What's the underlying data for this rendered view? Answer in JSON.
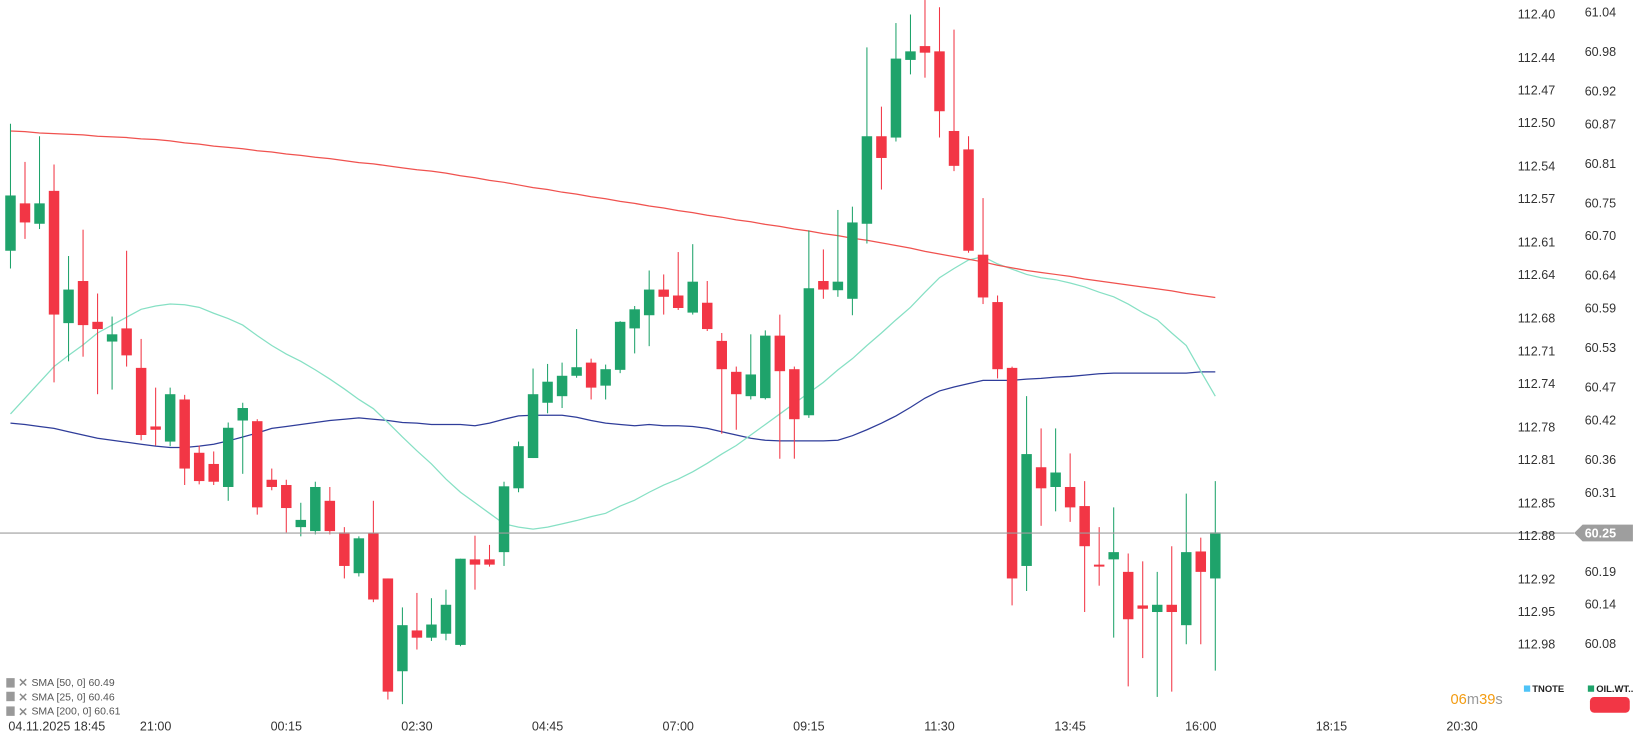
{
  "chart_data": {
    "type": "candlestick",
    "categories": [
      null,
      "04.11.2025 18:45",
      null,
      null,
      null,
      null,
      null,
      null,
      null,
      null,
      "21:00",
      null,
      null,
      null,
      null,
      null,
      null,
      null,
      null,
      "00:15",
      null,
      null,
      null,
      null,
      null,
      null,
      null,
      null,
      "02:30",
      null,
      null,
      null,
      null,
      null,
      null,
      null,
      null,
      "04:45",
      null,
      null,
      null,
      null,
      null,
      null,
      null,
      null,
      "07:00",
      null,
      null,
      null,
      null,
      null,
      null,
      null,
      null,
      "09:15",
      null,
      null,
      null,
      null,
      null,
      null,
      null,
      null,
      "11:30",
      null,
      null,
      null,
      null,
      null,
      null,
      null,
      null,
      "13:45",
      null,
      null,
      null,
      null,
      null,
      null,
      null,
      null,
      "16:00",
      null,
      null,
      null,
      null,
      null,
      null,
      null,
      null,
      "18:15",
      null,
      null,
      null,
      null,
      null,
      null,
      null,
      null,
      "20:30"
    ],
    "open": [
      60.679,
      60.751,
      60.72,
      60.77,
      60.569,
      60.633,
      60.571,
      60.541,
      60.561,
      60.501,
      60.412,
      60.389,
      60.453,
      60.372,
      60.355,
      60.32,
      60.421,
      60.42,
      60.331,
      60.323,
      60.259,
      60.253,
      60.299,
      60.251,
      60.189,
      60.25,
      60.181,
      60.04,
      60.102,
      60.091,
      60.097,
      60.08,
      60.21,
      60.21,
      60.221,
      60.318,
      60.364,
      60.448,
      60.458,
      60.489,
      60.509,
      60.474,
      60.498,
      60.561,
      60.581,
      60.62,
      60.611,
      60.585,
      60.6,
      60.542,
      60.495,
      60.458,
      60.455,
      60.55,
      60.499,
      60.429,
      60.633,
      60.619,
      60.606,
      60.72,
      60.853,
      60.851,
      60.969,
      60.99,
      60.982,
      60.861,
      60.833,
      60.673,
      60.601,
      60.501,
      60.2,
      60.35,
      60.32,
      60.32,
      60.291,
      60.202,
      60.21,
      60.191,
      60.14,
      60.13,
      60.141,
      60.11,
      60.222,
      60.181,
      null,
      null,
      null,
      null,
      null,
      null,
      null,
      null,
      null,
      null,
      null,
      null,
      null,
      null,
      null,
      null,
      null
    ],
    "high": [
      60.872,
      60.814,
      60.853,
      60.81,
      60.671,
      60.711,
      60.614,
      60.579,
      60.679,
      60.545,
      60.471,
      60.471,
      60.46,
      60.383,
      60.374,
      60.418,
      60.448,
      60.423,
      60.348,
      60.331,
      60.296,
      60.328,
      60.32,
      60.259,
      60.245,
      60.299,
      60.181,
      60.137,
      60.159,
      60.151,
      60.164,
      60.211,
      60.246,
      60.232,
      60.328,
      60.389,
      60.5,
      60.507,
      60.509,
      60.56,
      60.515,
      60.506,
      60.572,
      60.595,
      60.649,
      60.643,
      60.677,
      60.689,
      60.633,
      60.554,
      60.503,
      60.552,
      60.558,
      60.582,
      60.503,
      60.71,
      60.681,
      60.741,
      60.746,
      60.988,
      60.898,
      61.025,
      61.038,
      61.06,
      61.049,
      61.015,
      60.853,
      60.759,
      60.611,
      60.503,
      60.458,
      60.409,
      60.409,
      60.371,
      60.329,
      60.259,
      60.289,
      60.219,
      60.207,
      60.191,
      60.23,
      60.31,
      60.243,
      60.329,
      null,
      null,
      null,
      null,
      null,
      null,
      null,
      null,
      null,
      null,
      null,
      null,
      null,
      null,
      null,
      null,
      null
    ],
    "low": [
      60.652,
      60.697,
      60.712,
      60.479,
      60.511,
      60.518,
      60.461,
      60.468,
      60.503,
      60.391,
      60.383,
      60.382,
      60.323,
      60.324,
      60.323,
      60.299,
      60.34,
      60.278,
      60.315,
      60.251,
      60.245,
      60.248,
      60.248,
      60.181,
      60.184,
      60.145,
      59.997,
      59.99,
      60.073,
      60.086,
      60.087,
      60.078,
      60.164,
      60.199,
      60.2,
      60.312,
      60.364,
      60.432,
      60.44,
      60.486,
      60.453,
      60.453,
      60.493,
      60.523,
      60.534,
      60.582,
      60.589,
      60.582,
      60.557,
      60.401,
      60.407,
      60.453,
      60.453,
      60.363,
      60.363,
      60.425,
      60.606,
      60.609,
      60.581,
      60.69,
      60.772,
      60.845,
      60.947,
      60.942,
      60.851,
      60.8,
      60.676,
      60.598,
      60.485,
      60.14,
      60.162,
      60.261,
      60.283,
      60.267,
      60.13,
      60.17,
      60.091,
      60.017,
      60.06,
      60.001,
      60.009,
      60.081,
      60.081,
      60.041,
      null,
      null,
      null,
      null,
      null,
      null,
      null,
      null,
      null,
      null,
      null,
      null,
      null,
      null,
      null,
      null,
      null
    ],
    "close": [
      60.763,
      60.722,
      60.751,
      60.582,
      60.62,
      60.566,
      60.56,
      60.552,
      60.52,
      60.399,
      60.407,
      60.461,
      60.348,
      60.329,
      60.328,
      60.41,
      60.44,
      60.289,
      60.32,
      60.288,
      60.27,
      60.32,
      60.253,
      60.2,
      60.242,
      60.149,
      60.009,
      60.11,
      60.091,
      60.111,
      60.141,
      60.211,
      60.202,
      60.202,
      60.321,
      60.382,
      60.461,
      60.48,
      60.489,
      60.502,
      60.471,
      60.499,
      60.571,
      60.59,
      60.62,
      60.609,
      60.592,
      60.632,
      60.56,
      60.499,
      60.461,
      60.491,
      60.55,
      60.496,
      60.423,
      60.622,
      60.62,
      60.632,
      60.722,
      60.853,
      60.82,
      60.971,
      60.982,
      60.98,
      60.891,
      60.808,
      60.679,
      60.608,
      60.499,
      60.181,
      60.37,
      60.318,
      60.342,
      60.289,
      60.23,
      60.199,
      60.221,
      60.119,
      60.135,
      60.141,
      60.13,
      60.221,
      60.191,
      60.251,
      null,
      null,
      null,
      null,
      null,
      null,
      null,
      null,
      null,
      null,
      null,
      null,
      null,
      null,
      null,
      null,
      null
    ],
    "up_color": "#1fa36b",
    "down_color": "#f23645",
    "lines": [
      {
        "name": "SMA [50, 0] 60.49",
        "color": "#2f3d9a",
        "values": [
          60.417,
          60.415,
          60.412,
          60.409,
          60.404,
          60.399,
          60.394,
          60.391,
          60.388,
          60.385,
          60.382,
          60.38,
          60.38,
          60.382,
          60.385,
          60.39,
          60.396,
          60.402,
          60.409,
          60.412,
          60.415,
          60.418,
          60.421,
          60.423,
          60.425,
          60.423,
          60.421,
          60.418,
          60.417,
          60.415,
          60.415,
          60.415,
          60.413,
          60.417,
          60.423,
          60.428,
          60.429,
          60.429,
          60.429,
          60.426,
          60.421,
          60.417,
          60.415,
          60.413,
          60.415,
          60.413,
          60.413,
          60.412,
          60.409,
          60.404,
          60.399,
          60.394,
          60.391,
          60.39,
          60.39,
          60.39,
          60.39,
          60.391,
          60.398,
          60.407,
          60.417,
          60.428,
          60.441,
          60.455,
          60.466,
          60.472,
          60.477,
          60.482,
          60.482,
          60.482,
          60.484,
          60.485,
          60.487,
          60.488,
          60.49,
          60.492,
          60.493,
          60.493,
          60.493,
          60.493,
          60.493,
          60.493,
          60.495,
          60.495,
          null,
          null,
          null,
          null,
          null,
          null,
          null,
          null,
          null,
          null,
          null,
          null,
          null,
          null,
          null,
          null,
          null
        ]
      },
      {
        "name": "SMA [25, 0] 60.46",
        "color": "#86e0c4",
        "values": [
          60.431,
          60.455,
          60.479,
          60.503,
          60.52,
          60.536,
          60.554,
          60.566,
          60.578,
          60.59,
          60.595,
          60.598,
          60.597,
          60.593,
          60.584,
          60.576,
          60.566,
          60.55,
          60.535,
          60.522,
          60.511,
          60.498,
          60.484,
          60.469,
          60.453,
          60.439,
          60.418,
          60.396,
          60.375,
          60.355,
          60.332,
          60.312,
          60.296,
          60.28,
          60.264,
          60.259,
          60.256,
          60.259,
          60.264,
          60.269,
          60.275,
          60.28,
          60.291,
          60.3,
          60.312,
          60.323,
          60.332,
          60.343,
          60.356,
          60.37,
          60.383,
          60.399,
          60.415,
          60.431,
          60.447,
          60.463,
          60.479,
          60.498,
          60.515,
          60.535,
          60.554,
          60.574,
          60.593,
          60.616,
          60.638,
          60.652,
          60.665,
          60.67,
          60.659,
          60.651,
          60.643,
          60.638,
          60.635,
          60.63,
          60.624,
          60.616,
          60.609,
          60.598,
          60.585,
          60.574,
          60.554,
          60.535,
          60.496,
          60.458,
          null,
          null,
          null,
          null,
          null,
          null,
          null,
          null,
          null,
          null,
          null,
          null,
          null,
          null,
          null,
          null,
          null
        ]
      },
      {
        "name": "SMA [200, 0] 60.61",
        "color": "#f0524f",
        "values": [
          60.861,
          60.86,
          60.858,
          60.857,
          60.856,
          60.855,
          60.853,
          60.852,
          60.851,
          60.849,
          60.848,
          60.846,
          60.843,
          60.841,
          60.838,
          60.836,
          60.834,
          60.831,
          60.829,
          60.826,
          60.824,
          60.821,
          60.819,
          60.816,
          60.813,
          60.811,
          60.808,
          60.805,
          60.802,
          60.8,
          60.797,
          60.793,
          60.79,
          60.786,
          60.783,
          60.779,
          60.775,
          60.772,
          60.768,
          60.765,
          60.761,
          60.758,
          60.754,
          60.751,
          60.747,
          60.744,
          60.74,
          60.737,
          60.733,
          60.73,
          60.726,
          60.723,
          60.719,
          60.716,
          60.712,
          60.709,
          60.705,
          60.702,
          60.698,
          60.695,
          60.691,
          60.687,
          60.683,
          60.678,
          60.674,
          60.67,
          60.666,
          60.662,
          60.657,
          60.653,
          60.649,
          60.646,
          60.643,
          60.64,
          60.636,
          60.633,
          60.63,
          60.627,
          60.624,
          60.621,
          60.618,
          60.614,
          60.611,
          60.608,
          null,
          null,
          null,
          null,
          null,
          null,
          null,
          null,
          null,
          null,
          null,
          null,
          null,
          null,
          null,
          null,
          null
        ]
      }
    ],
    "ylim": [
      59.969,
      61.06
    ],
    "yticks": [
      61.04,
      60.98,
      60.92,
      60.87,
      60.81,
      60.75,
      {
        "value": 60.7,
        "label": "60.70"
      },
      60.64,
      60.59,
      60.53,
      60.47,
      60.42,
      60.36,
      60.31,
      60.19,
      60.14,
      60.08
    ],
    "y2lim": [
      113.047,
      112.386
    ],
    "y2ticks": [
      {
        "value": 112.4,
        "label": "112.40"
      },
      112.44,
      112.47,
      {
        "value": 112.5,
        "label": "112.50"
      },
      112.54,
      112.57,
      112.61,
      112.64,
      112.68,
      112.71,
      112.74,
      112.78,
      112.81,
      112.85,
      112.88,
      112.92,
      112.95,
      112.98
    ],
    "last_price": 60.25,
    "grid": false,
    "countdown": {
      "minutes": "06",
      "minutes_unit": "m",
      "seconds": "39",
      "seconds_unit": "s"
    },
    "instruments": [
      {
        "name": "TNOTE",
        "color": "#4fc3f7"
      },
      {
        "name": "OIL.WT..",
        "color": "#1fa36b"
      }
    ]
  }
}
